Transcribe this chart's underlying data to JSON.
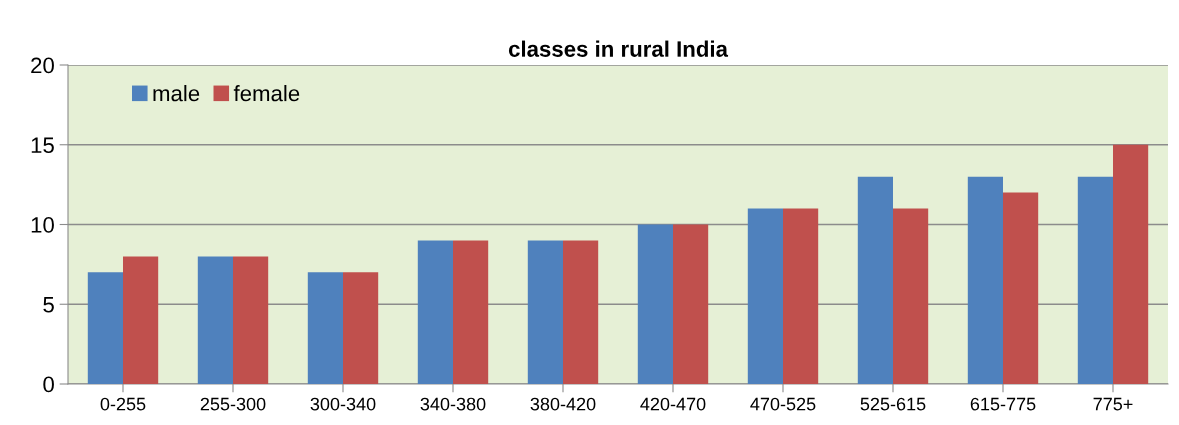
{
  "chart_data": {
    "type": "bar",
    "title": "classes in rural India",
    "categories": [
      "0-255",
      "255-300",
      "300-340",
      "340-380",
      "380-420",
      "420-470",
      "470-525",
      "525-615",
      "615-775",
      "775+"
    ],
    "series": [
      {
        "name": "male",
        "color": "#4f81bd",
        "values": [
          7,
          8,
          7,
          9,
          9,
          10,
          11,
          13,
          13,
          13
        ]
      },
      {
        "name": "female",
        "color": "#c0504d",
        "values": [
          8,
          8,
          7,
          9,
          9,
          10,
          11,
          11,
          12,
          15
        ]
      }
    ],
    "ylim": [
      0,
      20
    ],
    "yticks": [
      0,
      5,
      10,
      15,
      20
    ],
    "grid": "y",
    "legend": "top left"
  }
}
